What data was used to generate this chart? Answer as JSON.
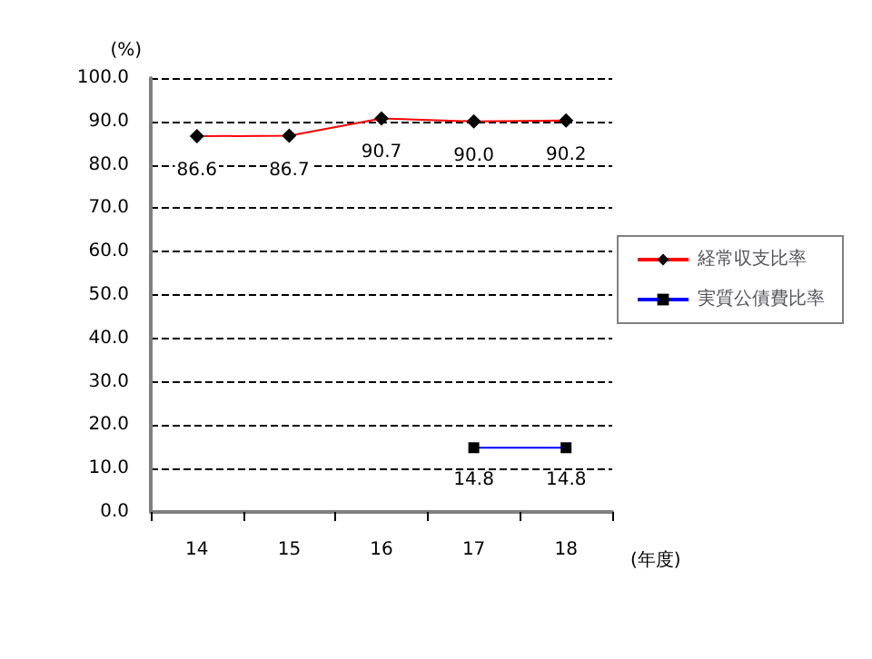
{
  "chart_data": {
    "type": "line",
    "ylabel": "(%)",
    "xlabel": "(年度)",
    "categories": [
      "14",
      "15",
      "16",
      "17",
      "18"
    ],
    "series": [
      {
        "name": "経常収支比率",
        "color": "#ff0000",
        "marker": "diamond",
        "values": [
          86.6,
          86.7,
          90.7,
          90.0,
          90.2
        ],
        "value_labels": [
          "86.6",
          "86.7",
          "90.7",
          "90.0",
          "90.2"
        ]
      },
      {
        "name": "実質公債費比率",
        "color": "#0000ff",
        "marker": "square",
        "values": [
          null,
          null,
          null,
          14.8,
          14.8
        ],
        "value_labels": [
          null,
          null,
          null,
          "14.8",
          "14.8"
        ]
      }
    ],
    "ylim": [
      0,
      100
    ],
    "yticks": [
      {
        "value": 0,
        "label": "0.0"
      },
      {
        "value": 10,
        "label": "10.0"
      },
      {
        "value": 20,
        "label": "20.0"
      },
      {
        "value": 30,
        "label": "30.0"
      },
      {
        "value": 40,
        "label": "40.0"
      },
      {
        "value": 50,
        "label": "50.0"
      },
      {
        "value": 60,
        "label": "60.0"
      },
      {
        "value": 70,
        "label": "70.0"
      },
      {
        "value": 80,
        "label": "80.0"
      },
      {
        "value": 90,
        "label": "90.0"
      },
      {
        "value": 100,
        "label": "100.0"
      }
    ],
    "grid": "y",
    "legend": "right",
    "line_style": "solid"
  }
}
